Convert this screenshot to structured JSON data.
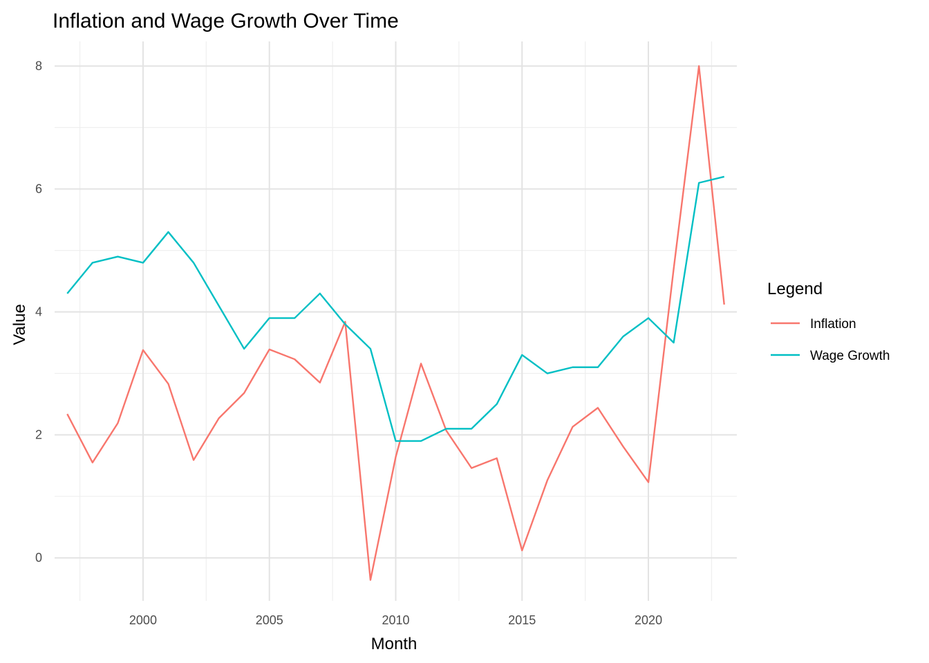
{
  "chart_data": {
    "type": "line",
    "title": "Inflation and Wage Growth Over Time",
    "xlabel": "Month",
    "ylabel": "Value",
    "xlim": [
      1996.5,
      2023.5
    ],
    "ylim": [
      -0.7,
      8.4
    ],
    "x_ticks": [
      2000,
      2005,
      2010,
      2015,
      2020
    ],
    "x_tick_labels": [
      "2000",
      "2005",
      "2010",
      "2015",
      "2020"
    ],
    "y_ticks": [
      0,
      2,
      4,
      6,
      8
    ],
    "y_tick_labels": [
      "0",
      "2",
      "4",
      "6",
      "8"
    ],
    "grid": true,
    "legend": {
      "title": "Legend",
      "placement": "right"
    },
    "x": [
      1997,
      1998,
      1999,
      2000,
      2001,
      2002,
      2003,
      2004,
      2005,
      2006,
      2007,
      2008,
      2009,
      2010,
      2011,
      2012,
      2013,
      2014,
      2015,
      2016,
      2017,
      2018,
      2019,
      2020,
      2021,
      2022,
      2023
    ],
    "series": [
      {
        "name": "Inflation",
        "color": "#F8766D",
        "values": [
          2.34,
          1.55,
          2.19,
          3.38,
          2.83,
          1.59,
          2.27,
          2.68,
          3.39,
          3.23,
          2.85,
          3.84,
          -0.36,
          1.64,
          3.16,
          2.07,
          1.46,
          1.62,
          0.12,
          1.26,
          2.13,
          2.44,
          1.81,
          1.23,
          4.7,
          8.0,
          4.12
        ]
      },
      {
        "name": "Wage Growth",
        "color": "#00BFC4",
        "values": [
          4.3,
          4.8,
          4.9,
          4.8,
          5.3,
          4.8,
          4.1,
          3.4,
          3.9,
          3.9,
          4.3,
          3.8,
          3.4,
          1.9,
          1.9,
          2.1,
          2.1,
          2.5,
          3.3,
          3.0,
          3.1,
          3.1,
          3.6,
          3.9,
          3.5,
          6.1,
          6.2
        ]
      }
    ]
  }
}
